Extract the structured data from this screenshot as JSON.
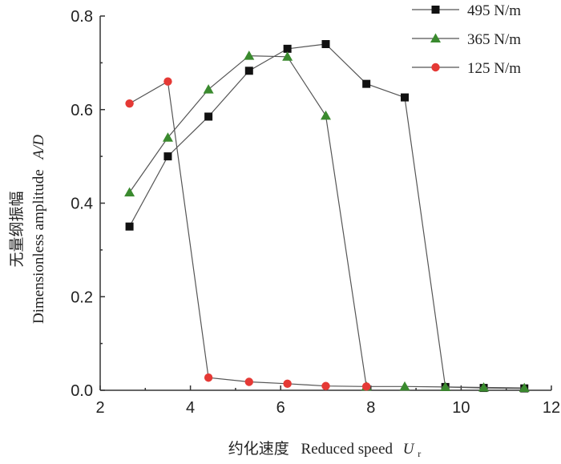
{
  "chart_data": {
    "type": "line",
    "xlabel_zh": "约化速度",
    "xlabel_en": "Reduced speed",
    "xlabel_var": "U",
    "xlabel_sub": "r",
    "ylabel_zh": "无量纲振幅",
    "ylabel_en": "Dimensionless amplitude",
    "ylabel_var": "A/D",
    "xlim": [
      2,
      12
    ],
    "ylim": [
      0,
      0.8
    ],
    "xticks": [
      "2",
      "4",
      "6",
      "8",
      "10",
      "12"
    ],
    "yticks": [
      "0.0",
      "0.2",
      "0.4",
      "0.6",
      "0.8"
    ],
    "grid": false,
    "legend_position": "top-right",
    "series": [
      {
        "name": "495 N/m",
        "marker": "square",
        "color": "#111111",
        "points": [
          [
            2.65,
            0.35
          ],
          [
            3.5,
            0.5
          ],
          [
            4.4,
            0.585
          ],
          [
            5.3,
            0.683
          ],
          [
            6.15,
            0.73
          ],
          [
            7.0,
            0.74
          ],
          [
            7.9,
            0.655
          ],
          [
            8.75,
            0.626
          ],
          [
            9.65,
            0.007
          ],
          [
            10.5,
            0.005
          ],
          [
            11.4,
            0.004
          ]
        ]
      },
      {
        "name": "365 N/m",
        "marker": "triangle",
        "color": "#3a8a2e",
        "points": [
          [
            2.65,
            0.423
          ],
          [
            3.5,
            0.54
          ],
          [
            4.4,
            0.643
          ],
          [
            5.3,
            0.715
          ],
          [
            6.15,
            0.713
          ],
          [
            7.0,
            0.587
          ],
          [
            7.9,
            0.008
          ],
          [
            8.75,
            0.008
          ],
          [
            9.65,
            0.007
          ],
          [
            10.5,
            0.006
          ],
          [
            11.4,
            0.005
          ]
        ]
      },
      {
        "name": "125 N/m",
        "marker": "circle",
        "color": "#e53935",
        "points": [
          [
            2.65,
            0.613
          ],
          [
            3.5,
            0.66
          ],
          [
            4.4,
            0.027
          ],
          [
            5.3,
            0.018
          ],
          [
            6.15,
            0.014
          ],
          [
            7.0,
            0.009
          ],
          [
            7.9,
            0.008
          ]
        ]
      }
    ]
  }
}
